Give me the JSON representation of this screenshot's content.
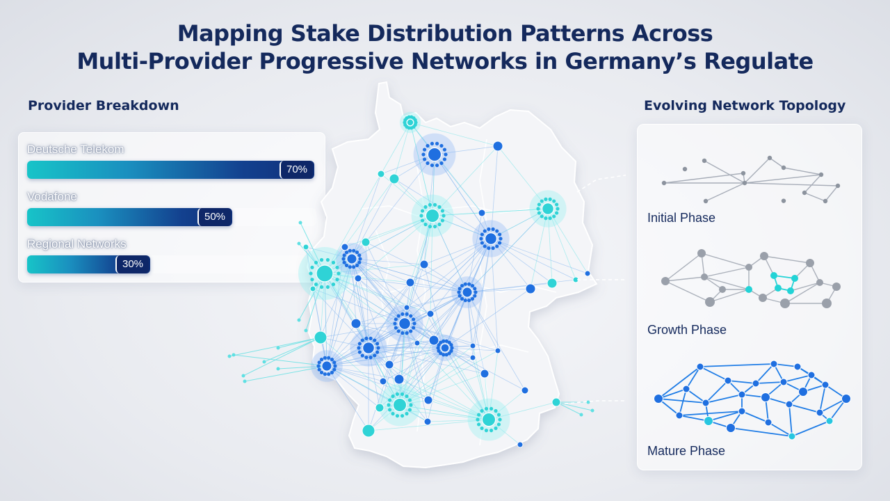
{
  "title": {
    "line1": "Mapping Stake Distribution Patterns Across",
    "line2": "Multi-Provider Progressive Networks in Germany’s Regulate"
  },
  "provider_breakdown": {
    "heading": "Provider Breakdown",
    "providers": [
      {
        "name": "Deutsche Telekom",
        "value": 70,
        "label": "70%"
      },
      {
        "name": "Vodafone",
        "value": 50,
        "label": "50%"
      },
      {
        "name": "Regional Networks",
        "value": 30,
        "label": "30%"
      }
    ]
  },
  "topology": {
    "heading": "Evolving Network Topology",
    "phases": [
      {
        "label": "Initial Phase"
      },
      {
        "label": "Growth Phase"
      },
      {
        "label": "Mature Phase"
      }
    ]
  },
  "colors": {
    "title": "#14295c",
    "bar_start": "#17c4c8",
    "bar_end": "#0f2f78",
    "node_cyan": "#2fd3d6",
    "node_blue": "#1f6fe0",
    "node_grey": "#9aa0aa"
  }
}
